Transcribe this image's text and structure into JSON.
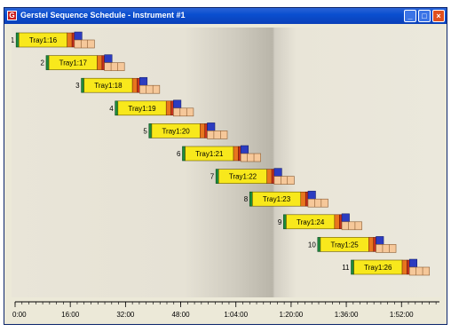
{
  "window": {
    "title": "Gerstel Sequence Schedule - Instrument #1",
    "app_icon": "G"
  },
  "chart_data": {
    "type": "gantt",
    "x_unit": "h:mm",
    "xlim": [
      0,
      123
    ],
    "ticks": [
      {
        "label": "0:00",
        "value": 0
      },
      {
        "label": "16:00",
        "value": 16
      },
      {
        "label": "32:00",
        "value": 32
      },
      {
        "label": "48:00",
        "value": 48
      },
      {
        "label": "1:04:00",
        "value": 64
      },
      {
        "label": "1:20:00",
        "value": 80
      },
      {
        "label": "1:36:00",
        "value": 96
      },
      {
        "label": "1:52:00",
        "value": 112
      }
    ],
    "segment_colors": {
      "prep": "#1e8a3c",
      "run": "#f8e81c",
      "orange": "#e8761e",
      "red": "#c8321e",
      "blue": "#2c3cc0",
      "post": "#f6c89a"
    },
    "rows": [
      {
        "number": "1",
        "label": "Tray1:16",
        "start": 0.3
      },
      {
        "number": "2",
        "label": "Tray1:17",
        "start": 9.0
      },
      {
        "number": "3",
        "label": "Tray1:18",
        "start": 19.2
      },
      {
        "number": "4",
        "label": "Tray1:19",
        "start": 29.0
      },
      {
        "number": "5",
        "label": "Tray1:20",
        "start": 38.8
      },
      {
        "number": "6",
        "label": "Tray1:21",
        "start": 48.5
      },
      {
        "number": "7",
        "label": "Tray1:22",
        "start": 58.2
      },
      {
        "number": "8",
        "label": "Tray1:23",
        "start": 68.0
      },
      {
        "number": "9",
        "label": "Tray1:24",
        "start": 77.8
      },
      {
        "number": "10",
        "label": "Tray1:25",
        "start": 87.7
      },
      {
        "number": "11",
        "label": "Tray1:26",
        "start": 97.4
      }
    ]
  }
}
